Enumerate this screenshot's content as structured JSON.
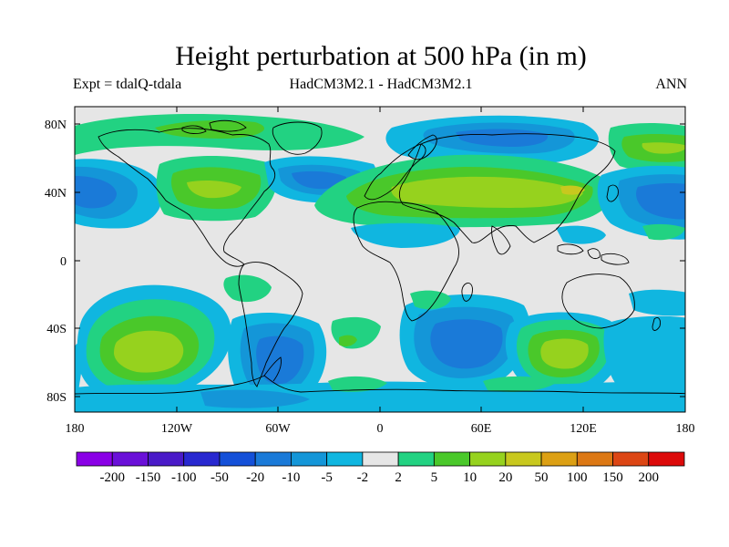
{
  "title": "Height perturbation at 500 hPa (in m)",
  "left_subtitle": "Expt = tdalQ-tdala",
  "center_subtitle": "HadCM3M2.1 - HadCM3M2.1",
  "right_subtitle": "ANN",
  "lat_labels": [
    "80N",
    "40N",
    "0",
    "40S",
    "80S"
  ],
  "lon_labels": [
    "180",
    "120W",
    "60W",
    "0",
    "60E",
    "120E",
    "180"
  ],
  "colorbar": {
    "labels": [
      "-200",
      "-150",
      "-100",
      "-50",
      "-20",
      "-10",
      "-5",
      "-2",
      "2",
      "5",
      "10",
      "20",
      "50",
      "100",
      "150",
      "200"
    ],
    "colors": [
      "#8a00e6",
      "#6a10d8",
      "#4a1ac8",
      "#2828d0",
      "#1450d8",
      "#1a7ad8",
      "#1496d8",
      "#10b6e0",
      "#e6e6e6",
      "#22d282",
      "#4ac82a",
      "#96d21e",
      "#c8c81e",
      "#dca014",
      "#dc7814",
      "#dc4614",
      "#dc0a0a"
    ],
    "missing_color": "#e6e6e6"
  }
}
